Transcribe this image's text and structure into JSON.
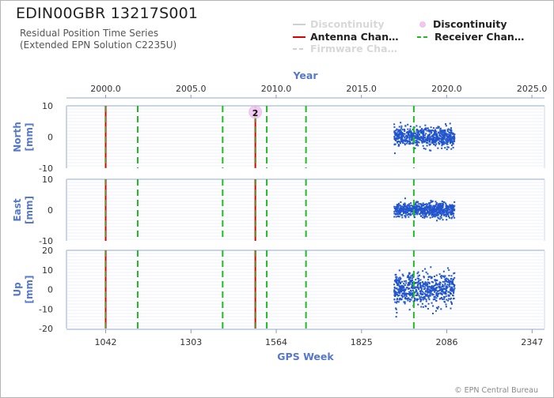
{
  "header": {
    "title": "EDIN00GBR 13217S001",
    "subtitle_line1": "Residual Position Time Series",
    "subtitle_line2": "(Extended EPN Solution C2235U)"
  },
  "legend": [
    {
      "label": "Discontinuity",
      "style": "line",
      "color": "#d0d0d0",
      "faded": true
    },
    {
      "label": "Discontinuity",
      "style": "circle",
      "color": "#f0c8f0",
      "faded": false
    },
    {
      "label": "Antenna Chan…",
      "style": "line",
      "color": "#dd0000",
      "faded": false
    },
    {
      "label": "Receiver Chan…",
      "style": "dashed",
      "color": "#22bb22",
      "faded": false
    },
    {
      "label": "Firmware Cha…",
      "style": "dashed",
      "color": "#d0d0d0",
      "faded": true
    }
  ],
  "credit": "© EPN Central Bureau",
  "colors": {
    "axis_label": "#5577cc",
    "points": "#2255cc",
    "antenna": "#dd0000",
    "receiver": "#22bb22",
    "discontinuity_marker": "#f0c8f0",
    "panel_border": "#c8d4ec"
  },
  "chart_data": {
    "type": "scatter",
    "top_axis": {
      "label": "Year",
      "ticks": [
        "2000.0",
        "2005.0",
        "2010.0",
        "2015.0",
        "2020.0",
        "2025.0"
      ],
      "tick_values": [
        2000,
        2005,
        2010,
        2015,
        2020,
        2025
      ]
    },
    "bottom_axis": {
      "label": "GPS Week",
      "ticks": [
        "1042",
        "1303",
        "1564",
        "1825",
        "2086",
        "2347"
      ],
      "tick_values": [
        1042,
        1303,
        1564,
        1825,
        2086,
        2347
      ]
    },
    "x_range_gps_week": [
      922,
      2385
    ],
    "panels": [
      {
        "name": "North",
        "ylabel_line1": "North",
        "ylabel_line2": "[mm]",
        "ylim": [
          -10,
          10
        ],
        "yticks": [
          "10",
          "0",
          "-10"
        ],
        "ytick_values": [
          10,
          0,
          -10
        ],
        "noise_sd": 1.5
      },
      {
        "name": "East",
        "ylabel_line1": "East",
        "ylabel_line2": "[mm]",
        "ylim": [
          -10,
          10
        ],
        "yticks": [
          "10",
          "0",
          "-10"
        ],
        "ytick_values": [
          10,
          0,
          -10
        ],
        "noise_sd": 1.2
      },
      {
        "name": "Up",
        "ylabel_line1": "Up",
        "ylabel_line2": "[mm]",
        "ylim": [
          -20,
          20
        ],
        "yticks": [
          "20",
          "10",
          "0",
          "-10",
          "-20"
        ],
        "ytick_values": [
          20,
          10,
          0,
          -10,
          -20
        ],
        "noise_sd": 4.2
      }
    ],
    "data_span_gps_week": [
      1925,
      2110
    ],
    "antenna_changes_gps_week": [
      1042,
      1500
    ],
    "receiver_changes_gps_week": [
      1042,
      1140,
      1400,
      1500,
      1535,
      1655,
      1985
    ],
    "discontinuities": [
      {
        "gps_week": 1500,
        "panel": "North",
        "value": 8,
        "label": "2"
      }
    ]
  }
}
